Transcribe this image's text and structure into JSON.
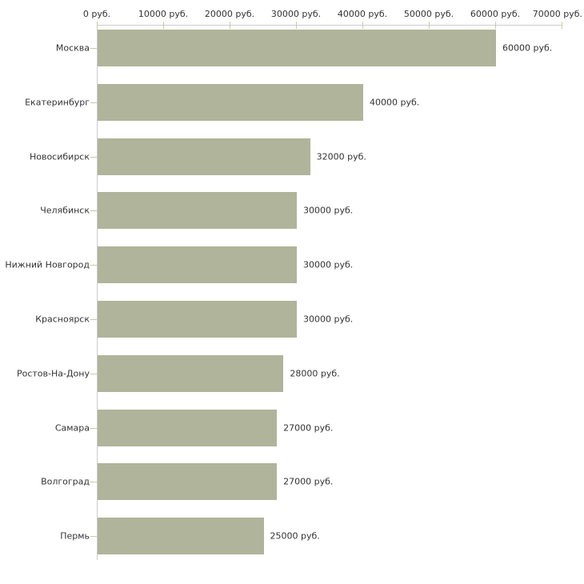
{
  "colors": {
    "bar_fill": "#b0b49a",
    "axis_line": "#cbcbcb",
    "tick": "#c9c9a6",
    "text": "#333333",
    "background": "#ffffff"
  },
  "chart_data": {
    "type": "bar",
    "orientation": "horizontal",
    "title": "",
    "xlabel": "",
    "ylabel": "",
    "grid": false,
    "legend": false,
    "x_axis": {
      "position": "top",
      "min": 0,
      "max": 70000,
      "tick_step": 10000,
      "tick_values": [
        0,
        10000,
        20000,
        30000,
        40000,
        50000,
        60000,
        70000
      ],
      "tick_labels": [
        "0 руб.",
        "10000 руб.",
        "20000 руб.",
        "30000 руб.",
        "40000 руб.",
        "50000 руб.",
        "60000 руб.",
        "70000 руб."
      ]
    },
    "categories": [
      "Москва",
      "Екатеринбург",
      "Новосибирск",
      "Челябинск",
      "Нижний Новгород",
      "Красноярск",
      "Ростов-На-Дону",
      "Самара",
      "Волгоград",
      "Пермь"
    ],
    "values": [
      60000,
      40000,
      32000,
      30000,
      30000,
      30000,
      28000,
      27000,
      27000,
      25000
    ],
    "value_labels": [
      "60000 руб.",
      "40000 руб.",
      "32000 руб.",
      "30000 руб.",
      "30000 руб.",
      "30000 руб.",
      "28000 руб.",
      "27000 руб.",
      "27000 руб.",
      "25000 руб."
    ]
  }
}
